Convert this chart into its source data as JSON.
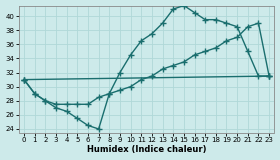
{
  "xlabel": "Humidex (Indice chaleur)",
  "bg_color": "#cdeaea",
  "grid_color": "#b0d8d8",
  "line_color": "#1a6e6e",
  "xlim": [
    -0.5,
    23.5
  ],
  "ylim": [
    23.5,
    41.5
  ],
  "xticks": [
    0,
    1,
    2,
    3,
    4,
    5,
    6,
    7,
    8,
    9,
    10,
    11,
    12,
    13,
    14,
    15,
    16,
    17,
    18,
    19,
    20,
    21,
    22,
    23
  ],
  "yticks": [
    24,
    26,
    28,
    30,
    32,
    34,
    36,
    38,
    40
  ],
  "line1_x": [
    0,
    1,
    2,
    3,
    4,
    5,
    6,
    7,
    8,
    9,
    10,
    11,
    12,
    13,
    14,
    15,
    16,
    17,
    18,
    19,
    20,
    21,
    22,
    23
  ],
  "line1_y": [
    31,
    29,
    28,
    27,
    26.5,
    25.5,
    24.5,
    24,
    29,
    32,
    34.5,
    36.5,
    37.5,
    39,
    41,
    41.5,
    40.5,
    39.5,
    39.5,
    39,
    38.5,
    35,
    31.5,
    31.5
  ],
  "line2_x": [
    0,
    1,
    2,
    3,
    4,
    5,
    6,
    7,
    8,
    9,
    10,
    11,
    12,
    13,
    14,
    15,
    16,
    17,
    18,
    19,
    20,
    21,
    22,
    23
  ],
  "line2_y": [
    31,
    29,
    28,
    27.5,
    27.5,
    27.5,
    27.5,
    28.5,
    29,
    29.5,
    30,
    31,
    31.5,
    32.5,
    33,
    33.5,
    34.5,
    35,
    35.5,
    36.5,
    37,
    38.5,
    39,
    31.5
  ],
  "line3_x": [
    0,
    23
  ],
  "line3_y": [
    31,
    31.5
  ],
  "marker": "+",
  "marker_size": 4,
  "linewidth": 1.0
}
